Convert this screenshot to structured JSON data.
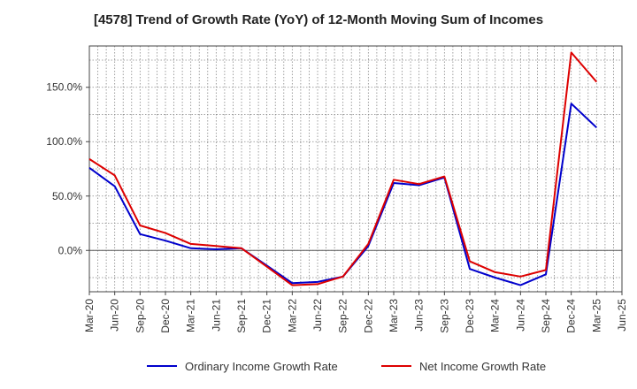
{
  "chart_data": {
    "type": "line",
    "title": "[4578]  Trend of Growth Rate (YoY) of 12-Month Moving Sum of Incomes",
    "xlabel": "",
    "ylabel": "",
    "x_ticks": [
      "Mar-20",
      "Jun-20",
      "Sep-20",
      "Dec-20",
      "Mar-21",
      "Jun-21",
      "Sep-21",
      "Dec-21",
      "Mar-22",
      "Jun-22",
      "Sep-22",
      "Dec-22",
      "Mar-23",
      "Jun-23",
      "Sep-23",
      "Dec-23",
      "Mar-24",
      "Jun-24",
      "Sep-24",
      "Dec-24",
      "Mar-25",
      "Jun-25"
    ],
    "y_ticks": [
      0,
      50,
      100,
      150
    ],
    "y_tick_labels": [
      "0.0%",
      "50.0%",
      "100.0%",
      "150.0%"
    ],
    "ylim": [
      -38,
      188
    ],
    "grid": true,
    "legend_position": "bottom",
    "categories": [
      "Mar-20",
      "Jun-20",
      "Sep-20",
      "Dec-20",
      "Mar-21",
      "Jun-21",
      "Sep-21",
      "Dec-21",
      "Mar-22",
      "Jun-22",
      "Sep-22",
      "Dec-22",
      "Mar-23",
      "Jun-23",
      "Sep-23",
      "Dec-23",
      "Mar-24",
      "Jun-24",
      "Sep-24",
      "Dec-24",
      "Mar-25"
    ],
    "series": [
      {
        "name": "Ordinary Income Growth Rate",
        "color": "#0000cc",
        "values": [
          76,
          59,
          15,
          9,
          2,
          1,
          2,
          -14,
          -30,
          -29,
          -24,
          4,
          62,
          60,
          67,
          -17,
          -25,
          -32,
          -22,
          135,
          113
        ]
      },
      {
        "name": "Net Income Growth Rate",
        "color": "#dd0000",
        "values": [
          84,
          69,
          23,
          16,
          6,
          4,
          2,
          -15,
          -32,
          -31,
          -24,
          6,
          65,
          61,
          68,
          -10,
          -20,
          -24,
          -18,
          182,
          155
        ]
      }
    ]
  }
}
